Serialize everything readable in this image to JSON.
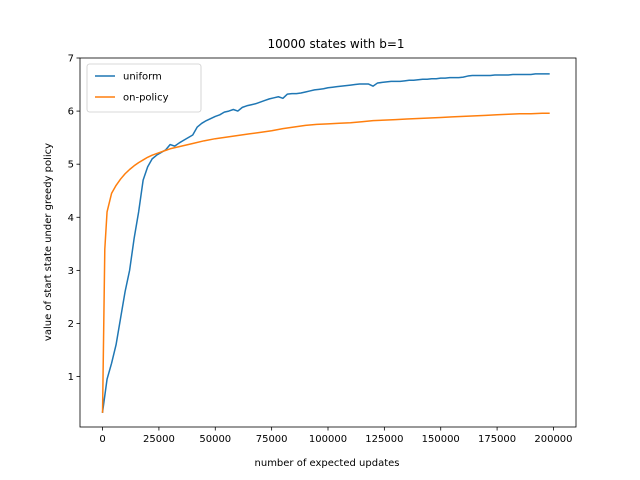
{
  "chart_data": {
    "type": "line",
    "title": "10000 states with b=1",
    "xlabel": "number of expected updates",
    "ylabel": "value of start state under greedy policy",
    "xlim": [
      -10000,
      210000
    ],
    "ylim": [
      0.05,
      7.0
    ],
    "xticks": [
      0,
      25000,
      50000,
      75000,
      100000,
      125000,
      150000,
      175000,
      200000
    ],
    "yticks": [
      1,
      2,
      3,
      4,
      5,
      6,
      7
    ],
    "grid": false,
    "legend_position": "top-left",
    "series": [
      {
        "name": "uniform",
        "color": "#1f77b4",
        "x": [
          0,
          2000,
          4000,
          6000,
          8000,
          10000,
          12000,
          14000,
          16000,
          18000,
          20000,
          22000,
          24000,
          26000,
          28000,
          30000,
          32000,
          34000,
          36000,
          38000,
          40000,
          42000,
          44000,
          46000,
          48000,
          50000,
          52000,
          54000,
          56000,
          58000,
          60000,
          62000,
          64000,
          66000,
          68000,
          70000,
          72000,
          74000,
          76000,
          78000,
          80000,
          82000,
          84000,
          86000,
          88000,
          90000,
          92000,
          94000,
          96000,
          98000,
          100000,
          102000,
          104000,
          106000,
          108000,
          110000,
          112000,
          114000,
          116000,
          118000,
          120000,
          122000,
          124000,
          126000,
          128000,
          130000,
          132000,
          134000,
          136000,
          138000,
          140000,
          142000,
          144000,
          146000,
          148000,
          150000,
          152000,
          154000,
          156000,
          158000,
          160000,
          162000,
          164000,
          166000,
          168000,
          170000,
          172000,
          174000,
          176000,
          178000,
          180000,
          182000,
          184000,
          186000,
          188000,
          190000,
          192000,
          194000,
          196000,
          198000
        ],
        "values": [
          0.33,
          0.95,
          1.25,
          1.6,
          2.1,
          2.6,
          3.0,
          3.6,
          4.1,
          4.7,
          4.95,
          5.1,
          5.17,
          5.22,
          5.27,
          5.37,
          5.34,
          5.4,
          5.45,
          5.5,
          5.55,
          5.7,
          5.77,
          5.82,
          5.86,
          5.9,
          5.93,
          5.98,
          6.0,
          6.03,
          6.0,
          6.07,
          6.1,
          6.12,
          6.14,
          6.17,
          6.2,
          6.23,
          6.25,
          6.27,
          6.24,
          6.32,
          6.33,
          6.33,
          6.34,
          6.36,
          6.38,
          6.4,
          6.41,
          6.42,
          6.44,
          6.45,
          6.46,
          6.47,
          6.48,
          6.49,
          6.5,
          6.51,
          6.51,
          6.51,
          6.47,
          6.53,
          6.54,
          6.55,
          6.56,
          6.56,
          6.56,
          6.57,
          6.58,
          6.58,
          6.59,
          6.6,
          6.6,
          6.61,
          6.61,
          6.62,
          6.62,
          6.63,
          6.63,
          6.63,
          6.64,
          6.66,
          6.67,
          6.67,
          6.67,
          6.67,
          6.67,
          6.68,
          6.68,
          6.68,
          6.68,
          6.69,
          6.69,
          6.69,
          6.69,
          6.69,
          6.7,
          6.7,
          6.7,
          6.7
        ]
      },
      {
        "name": "on-policy",
        "color": "#ff7f0e",
        "x": [
          0,
          1000,
          2000,
          4000,
          6000,
          8000,
          10000,
          12000,
          14000,
          16000,
          18000,
          20000,
          22000,
          24000,
          26000,
          28000,
          30000,
          35000,
          40000,
          45000,
          50000,
          55000,
          60000,
          65000,
          70000,
          75000,
          80000,
          85000,
          90000,
          95000,
          100000,
          105000,
          110000,
          115000,
          120000,
          125000,
          130000,
          135000,
          140000,
          145000,
          150000,
          155000,
          160000,
          165000,
          170000,
          175000,
          180000,
          185000,
          190000,
          195000,
          198000
        ],
        "values": [
          0.33,
          3.4,
          4.1,
          4.45,
          4.6,
          4.72,
          4.82,
          4.9,
          4.97,
          5.03,
          5.08,
          5.13,
          5.17,
          5.2,
          5.23,
          5.26,
          5.29,
          5.34,
          5.39,
          5.44,
          5.48,
          5.51,
          5.54,
          5.57,
          5.6,
          5.63,
          5.67,
          5.7,
          5.73,
          5.75,
          5.76,
          5.77,
          5.78,
          5.8,
          5.82,
          5.83,
          5.84,
          5.85,
          5.86,
          5.87,
          5.88,
          5.89,
          5.9,
          5.91,
          5.92,
          5.93,
          5.94,
          5.95,
          5.95,
          5.96,
          5.96
        ]
      }
    ]
  }
}
